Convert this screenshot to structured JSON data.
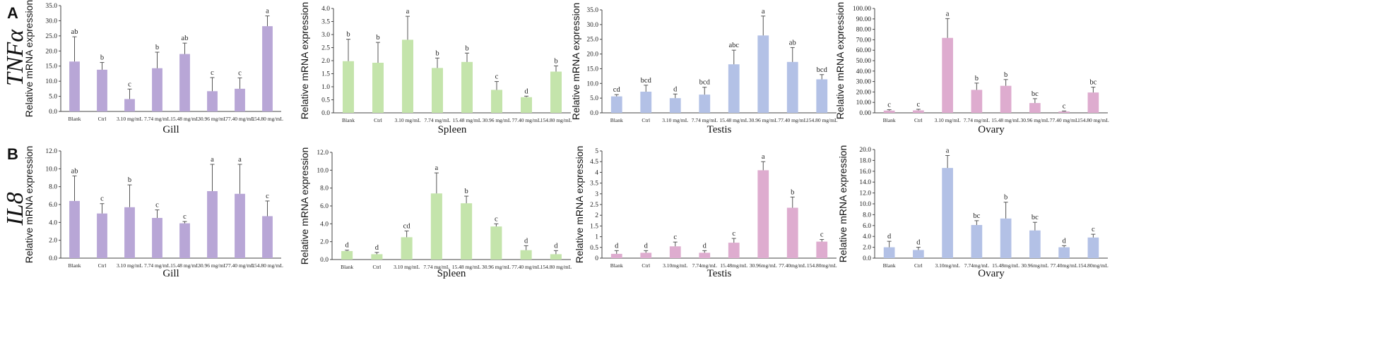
{
  "figure": {
    "panels": [
      {
        "letter": "A",
        "gene": "TNFα"
      },
      {
        "letter": "B",
        "gene": "IL8"
      }
    ],
    "y_axis_label": "Relative mRNA expression"
  },
  "colors": {
    "purple": "#b8a6d6",
    "green": "#c4e4ab",
    "blue": "#b3c1e6",
    "pink": "#deaccf",
    "error_bar": "#555555",
    "axis": "#444444"
  },
  "chart_data": [
    {
      "type": "bar",
      "row": 0,
      "title": "",
      "xlabel": "Gill",
      "ylabel": "Relative mRNA expression",
      "color": "purple",
      "ylim": [
        0,
        35
      ],
      "yticks": [
        "0.0",
        "5.0",
        "10.0",
        "15.0",
        "20.0",
        "25.0",
        "30.0",
        "35.0"
      ],
      "categories": [
        "Blank",
        "Ctrl",
        "3.10 mg/mL",
        "7.74 mg/mL",
        "15.48 mg/mL",
        "30.96 mg/mL",
        "77.40 mg/mL",
        "154.80 mg/mL"
      ],
      "values": [
        16.5,
        13.8,
        4.1,
        14.3,
        19.0,
        6.7,
        7.5,
        28.2
      ],
      "errors": [
        8.2,
        2.4,
        3.3,
        5.3,
        3.6,
        4.5,
        3.6,
        3.4
      ],
      "letters": [
        "ab",
        "b",
        "c",
        "b",
        "ab",
        "c",
        "c",
        "a"
      ]
    },
    {
      "type": "bar",
      "row": 0,
      "title": "",
      "xlabel": "Spleen",
      "ylabel": "Relative mRNA expression",
      "color": "green",
      "ylim": [
        0,
        4
      ],
      "yticks": [
        "0.0",
        "0.5",
        "1.0",
        "1.5",
        "2.0",
        "2.5",
        "3.0",
        "3.5",
        "4.0"
      ],
      "categories": [
        "Blank",
        "Ctrl",
        "3.10 mg/mL",
        "7.74 mg/mL",
        "15.48 mg/mL",
        "30.96 mg/mL",
        "77.40 mg/mL",
        "154.80 mg/mL"
      ],
      "values": [
        1.98,
        1.92,
        2.8,
        1.72,
        1.95,
        0.88,
        0.6,
        1.58
      ],
      "errors": [
        0.84,
        0.78,
        0.9,
        0.38,
        0.34,
        0.32,
        0.04,
        0.22
      ],
      "letters": [
        "b",
        "b",
        "a",
        "b",
        "b",
        "c",
        "d",
        "b"
      ]
    },
    {
      "type": "bar",
      "row": 0,
      "title": "",
      "xlabel": "Testis",
      "ylabel": "Relative mRNA expression",
      "color": "blue",
      "ylim": [
        0,
        35
      ],
      "yticks": [
        "0.0",
        "5.0",
        "10.0",
        "15.0",
        "20.0",
        "25.0",
        "30.0",
        "35.0"
      ],
      "categories": [
        "Blank",
        "Ctrl",
        "3.10 mg/mL",
        "7.74 mg/mL",
        "15.48 mg/mL",
        "30.96 mg/mL",
        "77.40 mg/mL",
        "154.80 mg/mL"
      ],
      "values": [
        5.6,
        7.2,
        5.0,
        6.2,
        16.5,
        26.3,
        17.3,
        11.4
      ],
      "errors": [
        0.6,
        2.2,
        1.4,
        2.5,
        4.8,
        6.6,
        4.9,
        1.6
      ],
      "letters": [
        "cd",
        "bcd",
        "d",
        "bcd",
        "abc",
        "a",
        "ab",
        "bcd"
      ]
    },
    {
      "type": "bar",
      "row": 0,
      "title": "",
      "xlabel": "Ovary",
      "ylabel": "Relative mRNA expression",
      "color": "pink",
      "ylim": [
        0,
        100
      ],
      "yticks": [
        "0.00",
        "10.00",
        "20.00",
        "30.00",
        "40.00",
        "50.00",
        "60.00",
        "70.00",
        "80.00",
        "90.00",
        "100.00"
      ],
      "categories": [
        "Blank",
        "Ctrl",
        "3.10 mg/mL",
        "7.74 mg/mL",
        "15.48 mg/mL",
        "30.96 mg/mL",
        "77.40 mg/mL",
        "154.80 mg/mL"
      ],
      "values": [
        2.2,
        2.4,
        71.8,
        22.0,
        25.9,
        9.4,
        1.3,
        19.5
      ],
      "errors": [
        0.8,
        1.0,
        18.5,
        6.5,
        6.0,
        4.2,
        0.5,
        5.1
      ],
      "letters": [
        "c",
        "c",
        "a",
        "b",
        "b",
        "bc",
        "c",
        "bc"
      ]
    },
    {
      "type": "bar",
      "row": 1,
      "title": "",
      "xlabel": "Gill",
      "ylabel": "Relative mRNA expression",
      "color": "purple",
      "ylim": [
        0,
        12
      ],
      "yticks": [
        "0.0",
        "2.0",
        "4.0",
        "6.0",
        "8.0",
        "10.0",
        "12.0"
      ],
      "categories": [
        "Blank",
        "Ctrl",
        "3.10 mg/mL",
        "7.74 mg/mL",
        "15.48 mg/mL",
        "30.96 mg/mL",
        "77.40 mg/mL",
        "154.80 mg/mL"
      ],
      "values": [
        6.4,
        5.0,
        5.7,
        4.5,
        3.9,
        7.5,
        7.2,
        4.7
      ],
      "errors": [
        2.8,
        1.1,
        2.5,
        0.9,
        0.2,
        3.0,
        3.3,
        1.7
      ],
      "letters": [
        "ab",
        "c",
        "b",
        "c",
        "c",
        "a",
        "a",
        "c"
      ]
    },
    {
      "type": "bar",
      "row": 1,
      "title": "",
      "xlabel": "Spleen",
      "ylabel": "Relative mRNA expression",
      "color": "green",
      "ylim": [
        0,
        12
      ],
      "yticks": [
        "0.0",
        "2.0",
        "4.0",
        "6.0",
        "8.0",
        "10.0",
        "12.0"
      ],
      "categories": [
        "Blank",
        "Ctrl",
        "3.10 mg/mL",
        "7.74 mg/mL",
        "15.48 mg/mL",
        "30.96 mg/mL",
        "77.40 mg/mL",
        "154.80 mg/mL"
      ],
      "values": [
        0.95,
        0.6,
        2.5,
        7.4,
        6.3,
        3.7,
        1.05,
        0.6
      ],
      "errors": [
        0.1,
        0.2,
        0.7,
        2.3,
        0.8,
        0.3,
        0.5,
        0.4
      ],
      "letters": [
        "d",
        "d",
        "cd",
        "a",
        "b",
        "c",
        "d",
        "d"
      ]
    },
    {
      "type": "bar",
      "row": 1,
      "title": "",
      "xlabel": "Testis",
      "ylabel": "Relative mRNA expression",
      "color": "pink",
      "ylim": [
        0,
        5
      ],
      "yticks": [
        "0",
        "0.5",
        "1",
        "1.5",
        "2",
        "2.5",
        "3",
        "3.5",
        "4",
        "4.5",
        "5"
      ],
      "categories": [
        "Blank",
        "Ctrl",
        "3.10mg/mL",
        "7.74mg/mL",
        "15.48mg/mL",
        "30.96mg/mL",
        "77.40mg/mL",
        "154.80mg/mL"
      ],
      "values": [
        0.2,
        0.25,
        0.55,
        0.25,
        0.72,
        4.1,
        2.35,
        0.77
      ],
      "errors": [
        0.15,
        0.1,
        0.2,
        0.1,
        0.2,
        0.4,
        0.5,
        0.1
      ],
      "letters": [
        "d",
        "d",
        "c",
        "d",
        "c",
        "a",
        "b",
        "c"
      ]
    },
    {
      "type": "bar",
      "row": 1,
      "title": "",
      "xlabel": "Ovary",
      "ylabel": "Relative mRNA expression",
      "color": "blue",
      "ylim": [
        0,
        20
      ],
      "yticks": [
        "0.0",
        "2.0",
        "4.0",
        "6.0",
        "8.0",
        "10.0",
        "12.0",
        "14.0",
        "16.0",
        "18.0",
        "20.0"
      ],
      "categories": [
        "Blank",
        "Ctrl",
        "3.10mg/mL",
        "7.74mg/mL",
        "15.48mg/mL",
        "30.96mg/mL",
        "77.40mg/mL",
        "154.80mg/mL"
      ],
      "values": [
        2.0,
        1.5,
        16.6,
        6.1,
        7.3,
        5.1,
        2.0,
        3.8
      ],
      "errors": [
        1.1,
        0.5,
        2.3,
        0.8,
        3.0,
        1.5,
        0.3,
        0.6
      ],
      "letters": [
        "d",
        "d",
        "a",
        "bc",
        "b",
        "bc",
        "d",
        "c"
      ]
    }
  ]
}
